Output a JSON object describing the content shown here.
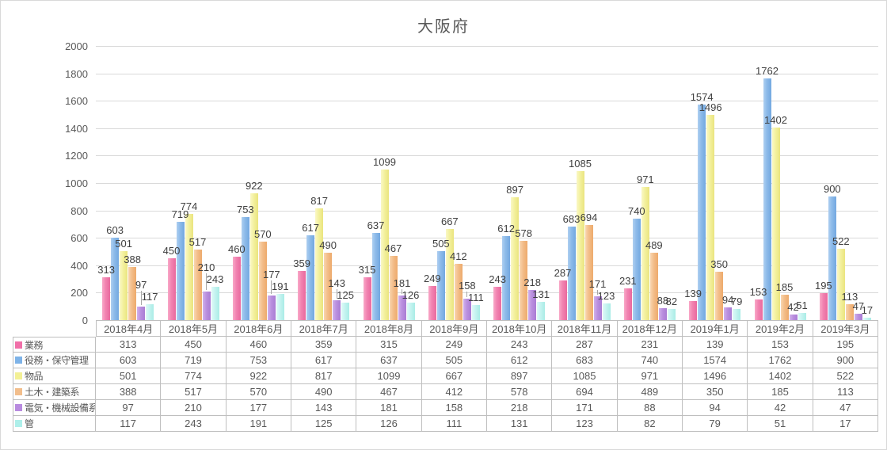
{
  "chart_data": {
    "type": "bar",
    "title": "大阪府",
    "categories": [
      "2018年4月",
      "2018年5月",
      "2018年6月",
      "2018年7月",
      "2018年8月",
      "2018年9月",
      "2018年10月",
      "2018年11月",
      "2018年12月",
      "2019年1月",
      "2019年2月",
      "2019年3月"
    ],
    "series": [
      {
        "name": "業務",
        "swatch": "#F06FA8",
        "light": "#F9A9C8",
        "base": "#F182B0",
        "dark": "#E9699E",
        "values": [
          313,
          450,
          460,
          359,
          315,
          249,
          243,
          287,
          231,
          139,
          153,
          195
        ]
      },
      {
        "name": "役務・保守管理",
        "swatch": "#7EB3E8",
        "light": "#AECFF1",
        "base": "#8CBAE9",
        "dark": "#73A8E0",
        "values": [
          603,
          719,
          753,
          617,
          637,
          505,
          612,
          683,
          740,
          1574,
          1762,
          900
        ]
      },
      {
        "name": "物品",
        "swatch": "#F3F095",
        "light": "#FAF8C5",
        "base": "#F3F09E",
        "dark": "#EAE47E",
        "values": [
          501,
          774,
          922,
          817,
          1099,
          667,
          897,
          1085,
          971,
          1496,
          1402,
          522
        ]
      },
      {
        "name": "土木・建築系",
        "swatch": "#F2BE8C",
        "light": "#F9D6B0",
        "base": "#F3BD89",
        "dark": "#EDAA6C",
        "values": [
          388,
          517,
          570,
          490,
          467,
          412,
          578,
          694,
          489,
          350,
          185,
          113
        ]
      },
      {
        "name": "電気・機械設備系",
        "swatch": "#B88BDF",
        "light": "#D1B1EB",
        "base": "#BA90DF",
        "dark": "#A97CD4",
        "values": [
          97,
          210,
          177,
          143,
          181,
          158,
          218,
          171,
          88,
          94,
          42,
          47
        ]
      },
      {
        "name": "管",
        "swatch": "#AEEFEA",
        "light": "#DFFAF8",
        "base": "#C5F3F0",
        "dark": "#A9ECE6",
        "values": [
          117,
          243,
          191,
          125,
          126,
          111,
          131,
          123,
          82,
          79,
          51,
          17
        ]
      }
    ],
    "ylim": [
      0,
      2000
    ],
    "yticks": [
      0,
      200,
      400,
      600,
      800,
      1000,
      1200,
      1400,
      1600,
      1800,
      2000
    ],
    "grid": true,
    "value_labels": true,
    "legend_position": "table-left",
    "colors": {
      "gridline": "#D9D9D9",
      "axis_line": "#BFBFBF",
      "axis_text": "#595959",
      "label_text": "#404040",
      "table_border": "#BFBFBF",
      "leader_line": "#A6A6A6",
      "title_text": "#595959",
      "background": "#FFFFFF"
    }
  }
}
